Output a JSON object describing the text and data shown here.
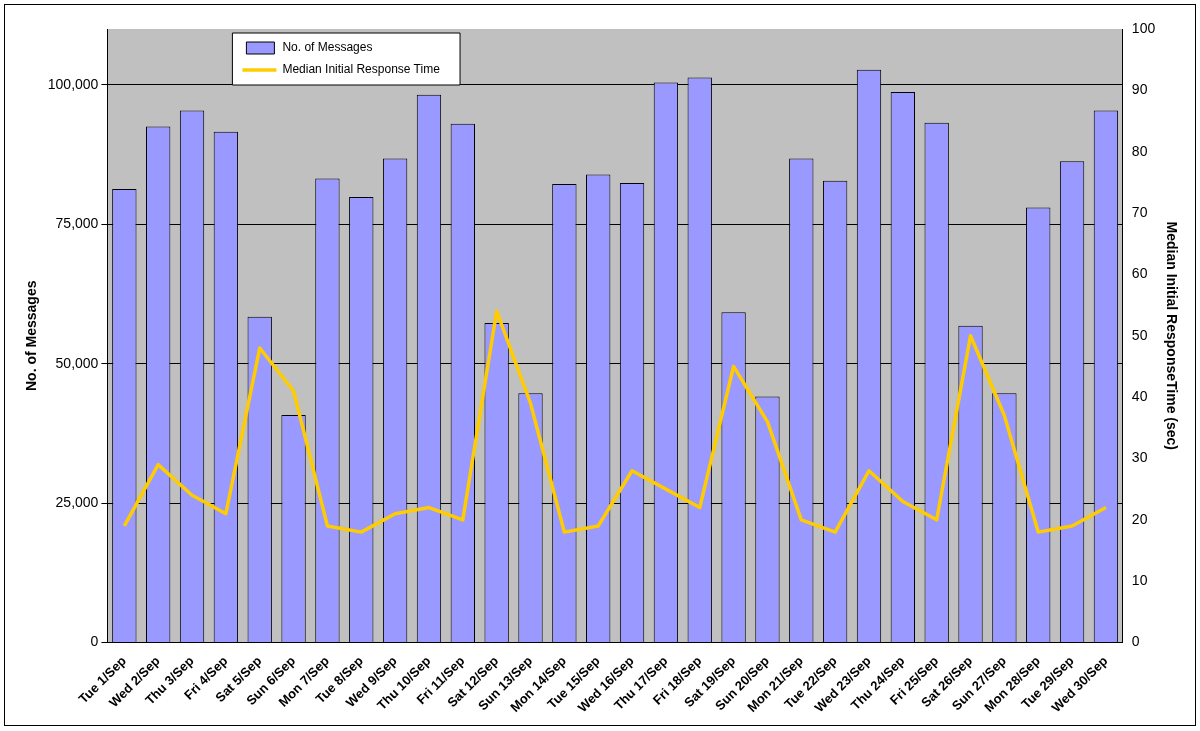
{
  "chart_data": {
    "type": "bar",
    "xlabel": null,
    "ylabel": "No. of Messages",
    "y2label": "Median Initial ResponseTime (sec)",
    "categories": [
      "Tue 1/Sep",
      "Wed 2/Sep",
      "Thu 3/Sep",
      "Fri 4/Sep",
      "Sat 5/Sep",
      "Sun 6/Sep",
      "Mon 7/Sep",
      "Tue 8/Sep",
      "Wed 9/Sep",
      "Thu 10/Sep",
      "Fri 11/Sep",
      "Sat 12/Sep",
      "Sun 13/Sep",
      "Mon 14/Sep",
      "Tue 15/Sep",
      "Wed 16/Sep",
      "Thu 17/Sep",
      "Fri 18/Sep",
      "Sat 19/Sep",
      "Sun 20/Sep",
      "Mon 21/Sep",
      "Tue 22/Sep",
      "Wed 23/Sep",
      "Thu 24/Sep",
      "Fri 25/Sep",
      "Sat 26/Sep",
      "Sun 27/Sep",
      "Mon 28/Sep",
      "Tue 29/Sep",
      "Wed 30/Sep"
    ],
    "series": [
      {
        "name": "No. of Messages",
        "color": "#9999ff",
        "values": [
          81300,
          92500,
          95400,
          91600,
          58400,
          40800,
          83200,
          79900,
          86800,
          98200,
          93000,
          57300,
          44700,
          82200,
          83900,
          82400,
          100400,
          101300,
          59200,
          44100,
          86800,
          82800,
          102700,
          98700,
          93200,
          56800,
          44700,
          78000,
          86300,
          95400
        ]
      },
      {
        "name": "Median Initial Response Time",
        "type": "line",
        "axis": "y2",
        "color": "#ffcc00",
        "values": [
          19,
          29,
          24,
          21,
          48,
          41,
          19,
          18,
          21,
          22,
          20,
          54,
          39,
          18,
          19,
          28,
          25,
          22,
          45,
          36,
          20,
          18,
          28,
          23,
          20,
          50,
          37,
          18,
          19,
          22
        ]
      }
    ],
    "ylim": [
      0,
      110000
    ],
    "yticks": [
      {
        "value": 0,
        "label": "0"
      },
      {
        "value": 25000,
        "label": "25,000"
      },
      {
        "value": 50000,
        "label": "50,000"
      },
      {
        "value": 75000,
        "label": "75,000"
      },
      {
        "value": 100000,
        "label": "100,000"
      }
    ],
    "y2lim": [
      0,
      100
    ],
    "y2ticks": [
      0,
      10,
      20,
      30,
      40,
      50,
      60,
      70,
      80,
      90,
      100
    ],
    "grid": "y",
    "legend": "top left",
    "marker": "none",
    "line_style": "solid"
  }
}
